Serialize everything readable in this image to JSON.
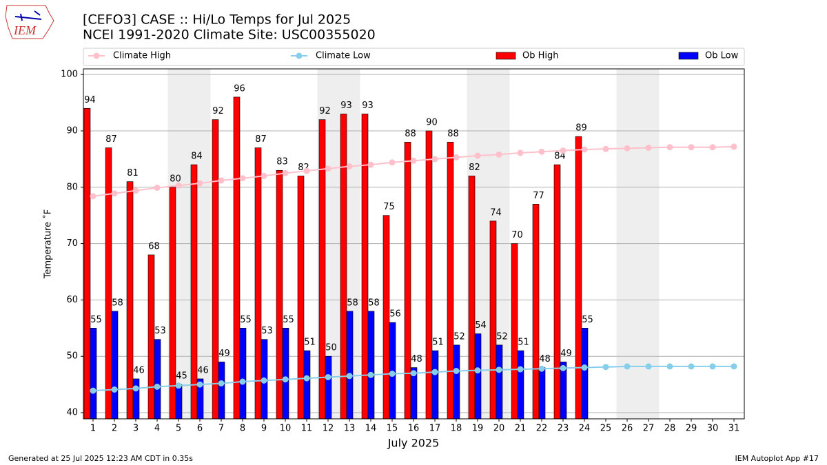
{
  "logo_text": "IEM",
  "footer": {
    "left": "Generated at 25 Jul 2025 12:23 AM CDT in 0.35s",
    "right": "IEM Autoplot App #17"
  },
  "chart_data": {
    "type": "bar",
    "title": "[CEFO3] CASE :: Hi/Lo Temps for Jul 2025",
    "subtitle": "NCEI 1991-2020 Climate Site: USC00355020",
    "ylabel": "Temperature ˚F",
    "xlabel": "July 2025",
    "categories": [
      "1",
      "2",
      "3",
      "4",
      "5",
      "6",
      "7",
      "8",
      "9",
      "10",
      "11",
      "12",
      "13",
      "14",
      "15",
      "16",
      "17",
      "18",
      "19",
      "20",
      "21",
      "22",
      "23",
      "24",
      "25",
      "26",
      "27",
      "28",
      "29",
      "30",
      "31"
    ],
    "ylim": [
      38.9,
      101
    ],
    "yticks": [
      40,
      50,
      60,
      70,
      80,
      90,
      100
    ],
    "grid": true,
    "legend": "top",
    "series": [
      {
        "name": "Climate High",
        "type": "line",
        "color": "#ffc0cb",
        "values": [
          78.4,
          78.9,
          79.4,
          79.9,
          80.3,
          80.7,
          81.2,
          81.6,
          82.0,
          82.5,
          82.9,
          83.3,
          83.7,
          84.0,
          84.4,
          84.7,
          85.0,
          85.3,
          85.6,
          85.8,
          86.1,
          86.3,
          86.5,
          86.7,
          86.8,
          86.9,
          87.0,
          87.1,
          87.1,
          87.1,
          87.2
        ]
      },
      {
        "name": "Climate Low",
        "type": "line",
        "color": "#87ceeb",
        "values": [
          43.9,
          44.1,
          44.3,
          44.6,
          44.8,
          45.0,
          45.2,
          45.5,
          45.7,
          45.9,
          46.1,
          46.3,
          46.5,
          46.7,
          46.9,
          47.0,
          47.2,
          47.4,
          47.5,
          47.6,
          47.7,
          47.8,
          47.9,
          48.0,
          48.1,
          48.2,
          48.2,
          48.2,
          48.2,
          48.2,
          48.2
        ]
      },
      {
        "name": "Ob High",
        "type": "bar",
        "color": "#ff0000",
        "values": [
          94,
          87,
          81,
          68,
          80,
          84,
          92,
          96,
          87,
          83,
          82,
          92,
          93,
          93,
          75,
          88,
          90,
          88,
          82,
          74,
          70,
          77,
          84,
          89,
          null,
          null,
          null,
          null,
          null,
          null,
          null
        ]
      },
      {
        "name": "Ob Low",
        "type": "bar",
        "color": "#0000ff",
        "values": [
          55,
          58,
          46,
          53,
          45,
          46,
          49,
          55,
          53,
          55,
          51,
          50,
          58,
          58,
          56,
          48,
          51,
          52,
          54,
          52,
          51,
          48,
          49,
          55,
          null,
          null,
          null,
          null,
          null,
          null,
          null
        ]
      }
    ]
  }
}
